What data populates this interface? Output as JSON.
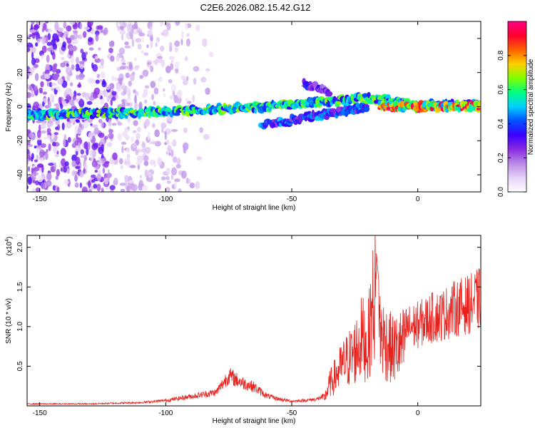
{
  "title": "C2E6.2026.082.15.42.G12",
  "colors": {
    "axis": "#000000",
    "snr_line": "#e8211d",
    "colormap": [
      "#ffffff",
      "#e6d2f5",
      "#b98ae6",
      "#8a2be2",
      "#3a00ff",
      "#0050ff",
      "#00d0ff",
      "#00ff80",
      "#80ff00",
      "#ffd000",
      "#ff6000",
      "#ff0030",
      "#ff0080"
    ]
  },
  "chart_data": [
    {
      "type": "heatmap",
      "name": "spectrogram",
      "xlabel": "Height of straight line (km)",
      "ylabel": "Frequency (Hz)",
      "xlim": [
        -155,
        25
      ],
      "ylim": [
        -50,
        50
      ],
      "x_ticks": [
        -150,
        -100,
        -50,
        0
      ],
      "x_tick_labels": [
        "-150",
        "-100",
        "-50",
        "0"
      ],
      "y_ticks": [
        40,
        20,
        0,
        -20,
        -40
      ],
      "y_tick_labels": [
        "40",
        "20",
        "0",
        "-20",
        "-40"
      ],
      "colorbar": {
        "label": "Normalized spectral amplitude",
        "range": [
          0,
          1
        ],
        "ticks": [
          0.0,
          0.2,
          0.4,
          0.6,
          0.8
        ],
        "tick_labels": [
          "0.0",
          "0.2",
          "0.4",
          "0.6",
          "0.8"
        ]
      },
      "features": [
        {
          "name": "main tone",
          "x": [
            -155,
            -100,
            -60,
            -20,
            0,
            25
          ],
          "freq_hz": [
            -5,
            -3,
            0,
            5,
            1,
            1
          ],
          "peak_amplitude": 0.7
        },
        {
          "name": "lower branch",
          "x": [
            -62,
            -20
          ],
          "freq_hz": [
            -11,
            0
          ],
          "peak_amplitude": 0.5
        },
        {
          "name": "upper branch",
          "x": [
            -45,
            -35
          ],
          "freq_hz": [
            13,
            9
          ],
          "peak_amplitude": 0.4
        },
        {
          "name": "strong carrier",
          "x": [
            -15,
            25
          ],
          "freq_hz": [
            0,
            0
          ],
          "peak_amplitude": 1.0
        }
      ]
    },
    {
      "type": "line",
      "name": "snr",
      "xlabel": "Height of straight line (km)",
      "ylabel": "SNR (10 * v/v)",
      "y_scale_label": "(x10",
      "y_scale_exponent": "4",
      "xlim": [
        -155,
        25
      ],
      "ylim": [
        0,
        2.15
      ],
      "x_ticks": [
        -150,
        -100,
        -50,
        0
      ],
      "x_tick_labels": [
        "-150",
        "-100",
        "-50",
        "0"
      ],
      "y_ticks": [
        0.5,
        1.0,
        1.5,
        2.0
      ],
      "y_tick_labels": [
        "0.5",
        "1.0",
        "1.5",
        "2.0"
      ],
      "series": [
        {
          "name": "SNR",
          "x": [
            -155,
            -130,
            -110,
            -100,
            -90,
            -80,
            -75,
            -70,
            -65,
            -60,
            -55,
            -50,
            -45,
            -40,
            -37,
            -35,
            -30,
            -25,
            -22,
            -20,
            -17,
            -15,
            -13,
            -10,
            -5,
            0,
            5,
            10,
            15,
            20,
            25
          ],
          "y": [
            0.03,
            0.03,
            0.05,
            0.08,
            0.14,
            0.2,
            0.45,
            0.35,
            0.28,
            0.15,
            0.1,
            0.07,
            0.08,
            0.1,
            0.15,
            0.4,
            0.75,
            1.0,
            1.3,
            1.1,
            2.15,
            1.4,
            1.2,
            1.05,
            1.15,
            1.2,
            1.3,
            1.35,
            1.45,
            1.5,
            1.6
          ]
        }
      ]
    }
  ]
}
